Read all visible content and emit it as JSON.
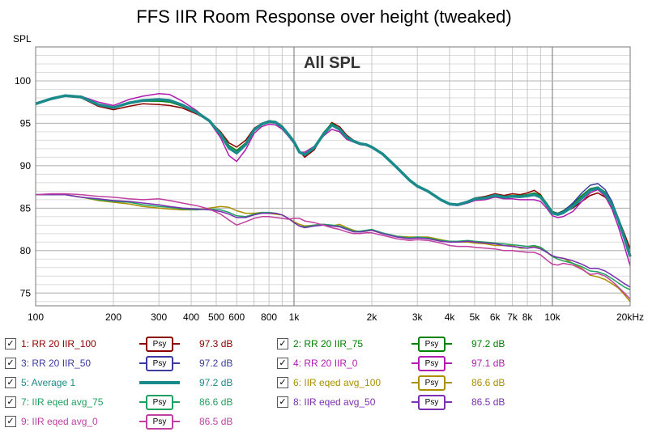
{
  "chart_data": {
    "type": "line",
    "title": "FFS IIR Room Response over height (tweaked)",
    "ylabel": "SPL",
    "panel_label": "All SPL",
    "x_scale": "log",
    "xlim": [
      100,
      20000
    ],
    "ylim": [
      73.5,
      104
    ],
    "y_ticks": [
      75,
      80,
      85,
      90,
      95,
      100
    ],
    "y_tick_labels": [
      "75",
      "80",
      "85",
      "90",
      "95",
      "100"
    ],
    "x_ticks": [
      100,
      200,
      300,
      400,
      500,
      600,
      800,
      1000,
      2000,
      3000,
      4000,
      5000,
      6000,
      7000,
      8000,
      10000,
      20000
    ],
    "x_tick_labels": [
      "100",
      "200",
      "300",
      "400",
      "500",
      "600",
      "800",
      "1k",
      "2k",
      "3k",
      "4k",
      "5k",
      "6k",
      "7k",
      "8k",
      "10k",
      "20kHz"
    ],
    "grid": true,
    "x": [
      100,
      115,
      130,
      150,
      175,
      200,
      230,
      260,
      300,
      330,
      370,
      420,
      470,
      520,
      560,
      600,
      650,
      700,
      750,
      800,
      850,
      900,
      950,
      1000,
      1050,
      1100,
      1200,
      1300,
      1400,
      1500,
      1600,
      1700,
      1800,
      1900,
      2000,
      2200,
      2500,
      2800,
      3000,
      3300,
      3700,
      4000,
      4300,
      4700,
      5000,
      5500,
      6000,
      6500,
      7000,
      7500,
      8000,
      8500,
      9000,
      9500,
      10000,
      10500,
      11000,
      12000,
      13000,
      14000,
      15000,
      16000,
      17000,
      18000,
      19000,
      20000
    ],
    "series": [
      {
        "name": "1: RR 20 IIR_100",
        "color": "#8b0000",
        "width": 1.5,
        "values": [
          97.3,
          97.9,
          98.2,
          98.0,
          97.0,
          96.6,
          97.0,
          97.3,
          97.2,
          97.1,
          96.8,
          96.1,
          95.3,
          94.0,
          92.7,
          92.2,
          93.0,
          94.4,
          95.0,
          95.3,
          95.2,
          94.7,
          93.8,
          92.9,
          91.7,
          91.0,
          91.9,
          93.7,
          95.1,
          94.6,
          93.6,
          93.0,
          92.7,
          92.5,
          92.2,
          91.4,
          89.8,
          88.3,
          87.6,
          87.0,
          86.0,
          85.5,
          85.4,
          85.8,
          86.2,
          86.4,
          86.7,
          86.5,
          86.7,
          86.6,
          86.8,
          87.1,
          86.6,
          85.5,
          84.5,
          84.3,
          84.5,
          85.0,
          85.8,
          86.5,
          86.8,
          86.3,
          85.3,
          83.8,
          82.0,
          80.2
        ]
      },
      {
        "name": "2: RR 20 IIR_75",
        "color": "#008000",
        "width": 1.5,
        "values": [
          97.3,
          97.9,
          98.3,
          98.1,
          97.2,
          96.8,
          97.3,
          97.6,
          97.6,
          97.5,
          97.0,
          96.2,
          95.3,
          93.9,
          92.4,
          91.8,
          92.7,
          94.3,
          95.0,
          95.3,
          95.2,
          94.6,
          93.7,
          92.9,
          91.6,
          91.2,
          92.2,
          93.9,
          95.0,
          94.4,
          93.4,
          92.9,
          92.7,
          92.5,
          92.2,
          91.4,
          89.8,
          88.3,
          87.6,
          87.0,
          86.0,
          85.5,
          85.4,
          85.8,
          86.1,
          86.3,
          86.6,
          86.4,
          86.5,
          86.5,
          86.6,
          86.8,
          86.5,
          85.6,
          84.6,
          84.4,
          84.7,
          85.5,
          86.5,
          87.3,
          87.5,
          86.9,
          85.6,
          83.8,
          81.8,
          79.6
        ]
      },
      {
        "name": "3: RR 20 IIR_50",
        "color": "#3a3aa0",
        "width": 1.5,
        "values": [
          97.3,
          97.9,
          98.3,
          98.1,
          97.2,
          96.9,
          97.4,
          97.7,
          97.8,
          97.7,
          97.2,
          96.3,
          95.3,
          93.7,
          92.0,
          91.4,
          92.5,
          94.2,
          94.9,
          95.2,
          95.1,
          94.6,
          93.7,
          92.8,
          91.6,
          91.3,
          92.2,
          93.8,
          94.8,
          94.3,
          93.3,
          92.9,
          92.6,
          92.5,
          92.2,
          91.4,
          89.8,
          88.3,
          87.6,
          87.0,
          86.0,
          85.5,
          85.4,
          85.8,
          86.1,
          86.2,
          86.5,
          86.3,
          86.4,
          86.3,
          86.4,
          86.6,
          86.3,
          85.5,
          84.5,
          84.4,
          84.6,
          85.6,
          86.8,
          87.7,
          87.9,
          87.2,
          85.8,
          83.8,
          81.6,
          79.3
        ]
      },
      {
        "name": "4: RR 20 IIR_0",
        "color": "#b01cb0",
        "width": 1.5,
        "values": [
          97.3,
          97.8,
          98.2,
          98.2,
          97.5,
          97.1,
          97.8,
          98.2,
          98.5,
          98.4,
          97.6,
          96.5,
          95.2,
          93.3,
          91.2,
          90.5,
          91.9,
          93.8,
          94.6,
          94.9,
          94.8,
          94.3,
          93.5,
          92.6,
          91.6,
          91.6,
          92.3,
          93.5,
          94.3,
          94.0,
          93.1,
          92.8,
          92.5,
          92.4,
          92.1,
          91.3,
          89.7,
          88.2,
          87.5,
          86.9,
          85.9,
          85.4,
          85.3,
          85.6,
          85.9,
          86.0,
          86.3,
          86.1,
          86.1,
          86.0,
          86.0,
          86.0,
          85.8,
          85.0,
          84.1,
          83.9,
          84.0,
          84.6,
          85.8,
          86.8,
          87.2,
          86.4,
          84.9,
          82.8,
          80.5,
          78.2
        ]
      },
      {
        "name": "5: Average 1",
        "color": "#1b8a8a",
        "width": 3.5,
        "values": [
          97.3,
          97.9,
          98.25,
          98.1,
          97.2,
          96.85,
          97.4,
          97.7,
          97.8,
          97.7,
          97.15,
          96.3,
          95.3,
          93.7,
          92.1,
          91.5,
          92.5,
          94.2,
          94.9,
          95.2,
          95.1,
          94.55,
          93.7,
          92.8,
          91.6,
          91.3,
          92.15,
          93.7,
          94.8,
          94.3,
          93.35,
          92.9,
          92.6,
          92.5,
          92.2,
          91.4,
          89.8,
          88.3,
          87.6,
          87.0,
          86.0,
          85.5,
          85.4,
          85.75,
          86.1,
          86.2,
          86.5,
          86.3,
          86.4,
          86.35,
          86.45,
          86.6,
          86.3,
          85.4,
          84.4,
          84.25,
          84.45,
          85.2,
          86.2,
          87.1,
          87.4,
          86.7,
          85.4,
          83.6,
          81.5,
          79.3
        ]
      },
      {
        "name": "6: IIR eqed avg_100",
        "color": "#a89000",
        "width": 1.5,
        "values": [
          86.6,
          86.6,
          86.6,
          86.3,
          85.9,
          85.7,
          85.5,
          85.2,
          85.0,
          84.9,
          84.8,
          84.8,
          85.0,
          85.2,
          85.1,
          84.7,
          84.4,
          84.4,
          84.5,
          84.4,
          84.3,
          84.2,
          83.8,
          83.4,
          83.1,
          82.9,
          83.0,
          83.1,
          82.9,
          83.1,
          82.7,
          82.4,
          82.2,
          82.3,
          82.4,
          82.0,
          81.7,
          81.6,
          81.6,
          81.6,
          81.3,
          81.1,
          81.0,
          81.0,
          80.9,
          80.8,
          80.6,
          80.6,
          80.6,
          80.3,
          80.3,
          80.5,
          80.3,
          79.8,
          79.3,
          79.2,
          79.1,
          78.5,
          77.9,
          77.1,
          76.9,
          76.6,
          76.1,
          75.6,
          74.8,
          74.0
        ]
      },
      {
        "name": "7: IIR eqed avg_75",
        "color": "#20a060",
        "width": 1.5,
        "values": [
          86.6,
          86.6,
          86.6,
          86.3,
          86.0,
          85.8,
          85.7,
          85.4,
          85.2,
          85.1,
          84.9,
          84.8,
          84.9,
          84.8,
          84.5,
          84.1,
          84.0,
          84.3,
          84.5,
          84.5,
          84.4,
          84.2,
          83.8,
          83.3,
          82.9,
          82.8,
          83.0,
          83.1,
          83.0,
          82.9,
          82.6,
          82.3,
          82.3,
          82.4,
          82.5,
          82.1,
          81.7,
          81.5,
          81.6,
          81.5,
          81.2,
          81.1,
          81.1,
          81.2,
          81.1,
          81.0,
          80.9,
          80.8,
          80.7,
          80.6,
          80.5,
          80.6,
          80.4,
          79.9,
          79.3,
          79.0,
          78.8,
          78.5,
          78.1,
          77.6,
          77.5,
          77.2,
          76.7,
          76.2,
          75.7,
          75.4
        ]
      },
      {
        "name": "8: IIR eqed avg_50",
        "color": "#7a30b0",
        "width": 1.5,
        "values": [
          86.6,
          86.6,
          86.6,
          86.3,
          86.1,
          85.9,
          85.8,
          85.6,
          85.4,
          85.2,
          85.0,
          84.9,
          84.8,
          84.6,
          84.3,
          83.9,
          83.9,
          84.2,
          84.4,
          84.4,
          84.4,
          84.2,
          83.8,
          83.3,
          82.9,
          82.7,
          82.9,
          83.0,
          82.9,
          82.8,
          82.5,
          82.2,
          82.2,
          82.3,
          82.4,
          82.0,
          81.6,
          81.4,
          81.5,
          81.4,
          81.1,
          81.0,
          81.0,
          81.1,
          81.0,
          80.9,
          80.8,
          80.6,
          80.5,
          80.4,
          80.3,
          80.4,
          80.2,
          79.8,
          79.4,
          79.2,
          79.1,
          78.8,
          78.4,
          77.9,
          77.9,
          77.6,
          77.1,
          76.6,
          76.1,
          75.7
        ]
      },
      {
        "name": "9: IIR eqed avg_0",
        "color": "#c040a0",
        "width": 1.5,
        "values": [
          86.6,
          86.7,
          86.7,
          86.6,
          86.4,
          86.3,
          86.1,
          86.0,
          86.1,
          85.9,
          85.6,
          85.3,
          84.9,
          84.3,
          83.6,
          83.0,
          83.4,
          83.8,
          84.0,
          84.0,
          83.9,
          83.8,
          83.7,
          83.8,
          83.8,
          83.5,
          83.3,
          83.0,
          82.7,
          82.5,
          82.2,
          82.0,
          82.0,
          82.1,
          82.1,
          81.8,
          81.4,
          81.2,
          81.3,
          81.2,
          80.9,
          80.6,
          80.5,
          80.5,
          80.4,
          80.3,
          80.2,
          80.0,
          80.0,
          79.9,
          79.8,
          79.8,
          79.5,
          78.9,
          78.4,
          78.3,
          78.5,
          78.3,
          77.8,
          77.2,
          77.3,
          77.0,
          76.4,
          75.7,
          75.0,
          74.3
        ]
      }
    ]
  },
  "legend": {
    "items": [
      {
        "label": "1: RR 20 IIR_100",
        "color": "#8b0000",
        "symbol": "Psy",
        "value": "97.3 dB",
        "checked": "✓"
      },
      {
        "label": "2: RR 20 IIR_75",
        "color": "#008000",
        "symbol": "Psy",
        "value": "97.2 dB",
        "checked": "✓"
      },
      {
        "label": "3: RR 20 IIR_50",
        "color": "#3a3aa0",
        "symbol": "Psy",
        "value": "97.2 dB",
        "checked": "✓"
      },
      {
        "label": "4: RR 20 IIR_0",
        "color": "#b01cb0",
        "symbol": "Psy",
        "value": "97.1 dB",
        "checked": "✓"
      },
      {
        "label": "5: Average 1",
        "color": "#1b8a8a",
        "symbol": "",
        "value": "97.2 dB",
        "checked": "✓"
      },
      {
        "label": "6: IIR eqed avg_100",
        "color": "#a89000",
        "symbol": "Psy",
        "value": "86.6 dB",
        "checked": "✓"
      },
      {
        "label": "7: IIR eqed avg_75",
        "color": "#20a060",
        "symbol": "Psy",
        "value": "86.6 dB",
        "checked": "✓"
      },
      {
        "label": "8: IIR eqed avg_50",
        "color": "#7a30b0",
        "symbol": "Psy",
        "value": "86.5 dB",
        "checked": "✓"
      },
      {
        "label": "9: IIR eqed avg_0",
        "color": "#c040a0",
        "symbol": "Psy",
        "value": "86.5 dB",
        "checked": "✓"
      }
    ]
  }
}
